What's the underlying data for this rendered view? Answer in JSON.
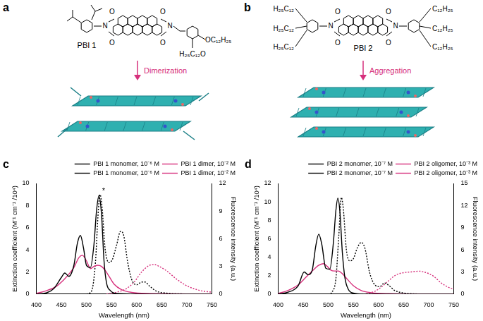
{
  "diagrams": [
    {
      "panel_label": "a",
      "name": "PBI 1",
      "atoms": [
        "O",
        "N",
        "O",
        "O",
        "N",
        "O"
      ],
      "substituents": [
        "OC₁₂H₂₅",
        "H₂₅C₁₂O"
      ],
      "process": "Dimerization"
    },
    {
      "panel_label": "b",
      "name": "PBI 2",
      "atoms": [
        "O",
        "N",
        "O",
        "O",
        "N",
        "O"
      ],
      "substituents": [
        "H₂₅C₁₂",
        "H₂₅C₁₂",
        "H₂₅C₁₂",
        "C₁₂H₂₅",
        "C₁₂H₂₅",
        "C₁₂H₂₅"
      ],
      "process": "Aggregation"
    }
  ],
  "chart_data": [
    {
      "type": "line",
      "panel_label": "c",
      "x_label": "Wavelength (nm)",
      "y_label": "Extinction coefficient (M⁻¹ cm⁻¹ /10⁴)",
      "y2_label": "Fluorescence intensity (a.u.)",
      "xlim": [
        400,
        750
      ],
      "xticks": [
        400,
        450,
        500,
        550,
        600,
        650,
        700,
        750
      ],
      "ylim": [
        0,
        10
      ],
      "yticks": [
        0,
        2,
        4,
        6,
        8,
        10
      ],
      "y2lim": [
        0,
        12
      ],
      "y2ticks": [
        0,
        3,
        6,
        9,
        12
      ],
      "grid": false,
      "legend": "top",
      "annotations": [
        {
          "text": "*",
          "x": 531,
          "y": 9.3
        }
      ],
      "series": [
        {
          "name": "PBI 1 monomer, 10⁻⁶ M",
          "color": "#000000",
          "line_style": "solid",
          "x": [
            400,
            420,
            435,
            450,
            457,
            465,
            475,
            482,
            488,
            494,
            500,
            508,
            515,
            520,
            525,
            530,
            535,
            540,
            548,
            560,
            600,
            750
          ],
          "values": [
            0,
            0.1,
            0.5,
            1.5,
            1.9,
            1.6,
            2.6,
            4.6,
            5.3,
            4.2,
            2.6,
            2.4,
            4.5,
            7.5,
            8.9,
            7.2,
            3.0,
            1.0,
            0.3,
            0.05,
            0,
            0
          ]
        },
        {
          "name": "PBI 1 dimer, 10⁻² M",
          "color": "#d6307c",
          "line_style": "solid",
          "x": [
            400,
            420,
            440,
            455,
            465,
            475,
            485,
            492,
            500,
            508,
            515,
            522,
            530,
            538,
            545,
            555,
            570,
            590,
            620,
            750
          ],
          "values": [
            0.05,
            0.3,
            0.7,
            1.3,
            1.8,
            2.4,
            3.3,
            3.5,
            3.0,
            2.3,
            2.5,
            2.6,
            2.5,
            2.1,
            1.6,
            0.9,
            0.4,
            0.15,
            0.05,
            0
          ]
        },
        {
          "name": "PBI 1 monomer, 10⁻⁶ M",
          "color": "#000000",
          "line_style": "dotted",
          "axis": "y2",
          "x": [
            500,
            510,
            518,
            523,
            527,
            531,
            537,
            545,
            552,
            560,
            568,
            574,
            582,
            590,
            600,
            610,
            617,
            625,
            640,
            660,
            700
          ],
          "values": [
            0,
            0.3,
            3.5,
            8.5,
            10.8,
            9.5,
            5.0,
            3.4,
            3.8,
            5.3,
            6.8,
            6.4,
            3.5,
            1.6,
            1.0,
            1.3,
            1.3,
            0.9,
            0.3,
            0.1,
            0
          ]
        },
        {
          "name": "PBI 1 dimer, 10⁻² M",
          "color": "#d6307c",
          "line_style": "dotted",
          "axis": "y2",
          "x": [
            540,
            560,
            580,
            595,
            610,
            625,
            635,
            645,
            660,
            680,
            700,
            725,
            750
          ],
          "values": [
            0,
            0.2,
            0.6,
            1.3,
            2.4,
            3.1,
            3.2,
            3.0,
            2.5,
            1.6,
            0.9,
            0.4,
            0.2
          ]
        }
      ]
    },
    {
      "type": "line",
      "panel_label": "d",
      "x_label": "Wavelength (nm)",
      "y_label": "Extinction coefficient (M⁻¹ cm⁻¹ /10⁴)",
      "y2_label": "Fluorescence intensity (a.u.)",
      "xlim": [
        400,
        750
      ],
      "xticks": [
        400,
        450,
        500,
        550,
        600,
        650,
        700,
        750
      ],
      "ylim": [
        0,
        12
      ],
      "yticks": [
        0,
        2,
        4,
        6,
        8,
        10,
        12
      ],
      "y2lim": [
        0,
        15
      ],
      "y2ticks": [
        0,
        3,
        6,
        9,
        12,
        15
      ],
      "grid": false,
      "legend": "top",
      "series": [
        {
          "name": "PBI 2 monomer, 10⁻⁷ M",
          "color": "#000000",
          "line_style": "solid",
          "x": [
            400,
            420,
            440,
            452,
            460,
            468,
            475,
            481,
            487,
            495,
            503,
            510,
            515,
            519,
            523,
            528,
            533,
            540,
            550,
            570,
            750
          ],
          "values": [
            0,
            0.2,
            0.9,
            2.4,
            2.1,
            2.6,
            5.2,
            6.5,
            5.4,
            2.8,
            2.7,
            5.5,
            9.0,
            10.4,
            9.0,
            4.5,
            1.8,
            0.5,
            0.1,
            0,
            0
          ]
        },
        {
          "name": "PBI 2 oligomer, 10⁻³ M",
          "color": "#d6307c",
          "line_style": "solid",
          "x": [
            400,
            420,
            440,
            455,
            470,
            480,
            490,
            498,
            505,
            512,
            520,
            528,
            538,
            550,
            565,
            585,
            620,
            750
          ],
          "values": [
            0.05,
            0.4,
            1.0,
            1.8,
            2.6,
            3.1,
            3.3,
            3.0,
            2.6,
            2.5,
            2.5,
            2.2,
            1.6,
            0.9,
            0.4,
            0.15,
            0.05,
            0
          ]
        },
        {
          "name": "PBI 2 monomer, 10⁻⁷ M",
          "color": "#000000",
          "line_style": "dotted",
          "axis": "y2",
          "x": [
            505,
            515,
            521,
            526,
            530,
            536,
            543,
            550,
            558,
            566,
            573,
            582,
            592,
            602,
            612,
            620,
            632,
            650,
            680
          ],
          "values": [
            0,
            2.0,
            8.0,
            13.1,
            11.5,
            6.0,
            4.5,
            4.8,
            6.3,
            7.0,
            6.2,
            3.0,
            1.3,
            1.0,
            1.5,
            1.2,
            0.5,
            0.15,
            0
          ]
        },
        {
          "name": "PBI 2 oligomer, 10⁻³ M",
          "color": "#d6307c",
          "line_style": "dotted",
          "axis": "y2",
          "x": [
            570,
            590,
            605,
            620,
            635,
            650,
            665,
            680,
            695,
            710,
            725,
            740,
            750
          ],
          "values": [
            0,
            0.3,
            0.9,
            1.8,
            2.6,
            2.9,
            3.0,
            3.1,
            2.9,
            2.4,
            1.5,
            0.9,
            0.7
          ]
        }
      ]
    }
  ]
}
